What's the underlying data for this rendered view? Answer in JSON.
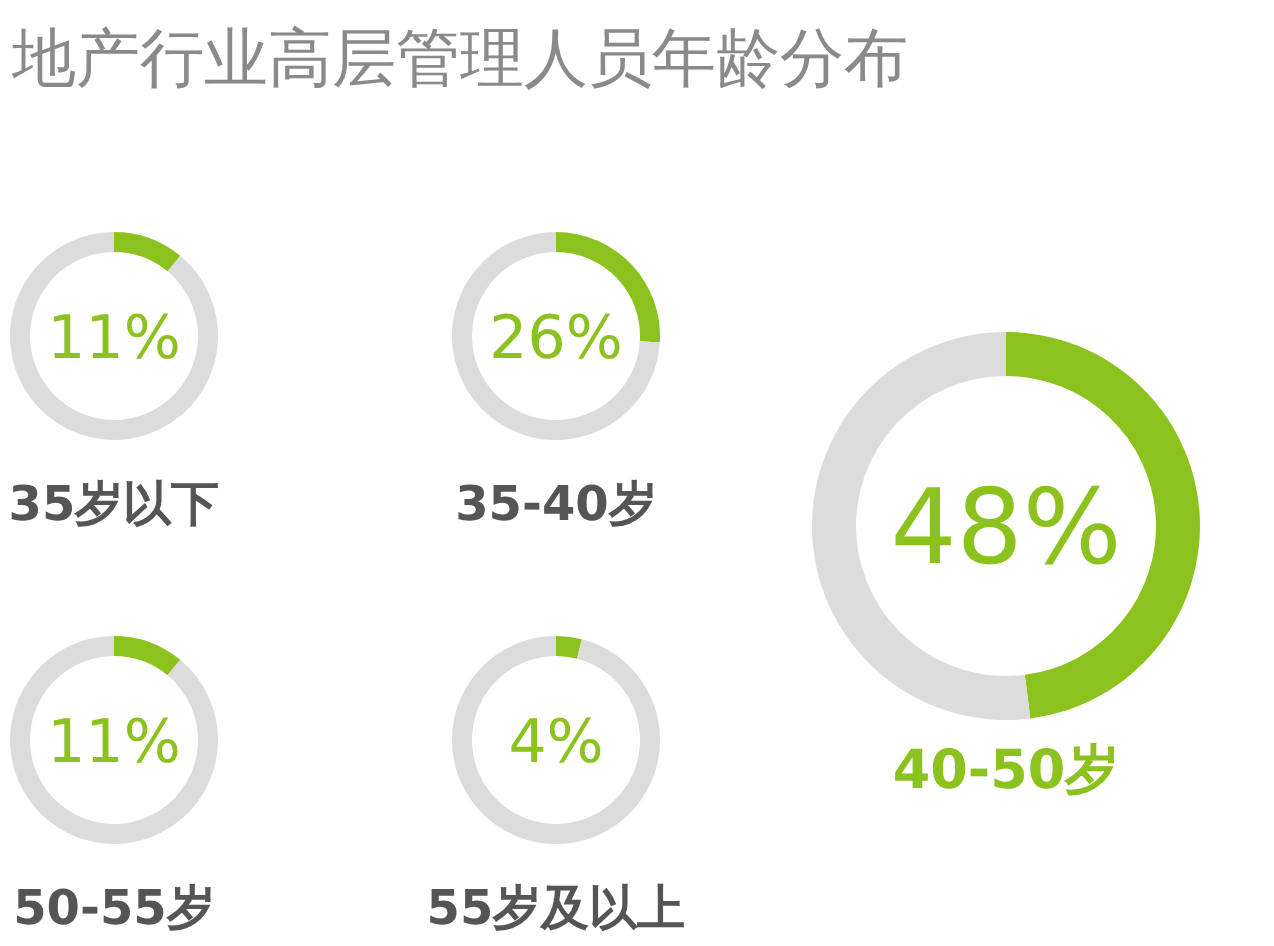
{
  "chart_data": [
    {
      "type": "other",
      "title": "地产行业高层管理人员年龄分布"
    },
    {
      "type": "donut",
      "title": "35岁以下",
      "categories": [
        null,
        null
      ],
      "values": [
        11,
        89
      ],
      "colors": [
        "#8cc21e",
        "#dcdcdc"
      ],
      "annotations": [
        "11%"
      ]
    },
    {
      "type": "donut",
      "title": "35-40岁",
      "categories": [
        null,
        null
      ],
      "values": [
        26,
        74
      ],
      "colors": [
        "#8cc21e",
        "#dcdcdc"
      ],
      "annotations": [
        "26%"
      ]
    },
    {
      "type": "donut",
      "title": "40-50岁",
      "categories": [
        null,
        null
      ],
      "values": [
        48,
        52
      ],
      "colors": [
        "#8cc21e",
        "#dcdcdc"
      ],
      "annotations": [
        "48%"
      ]
    },
    {
      "type": "donut",
      "title": "50-55岁",
      "categories": [
        null,
        null
      ],
      "values": [
        11,
        89
      ],
      "colors": [
        "#8cc21e",
        "#dcdcdc"
      ],
      "annotations": [
        "11%"
      ]
    },
    {
      "type": "donut",
      "title": "55岁及以上",
      "categories": [
        null,
        null
      ],
      "values": [
        4,
        96
      ],
      "colors": [
        "#8cc21e",
        "#dcdcdc"
      ],
      "annotations": [
        "4%"
      ]
    }
  ]
}
